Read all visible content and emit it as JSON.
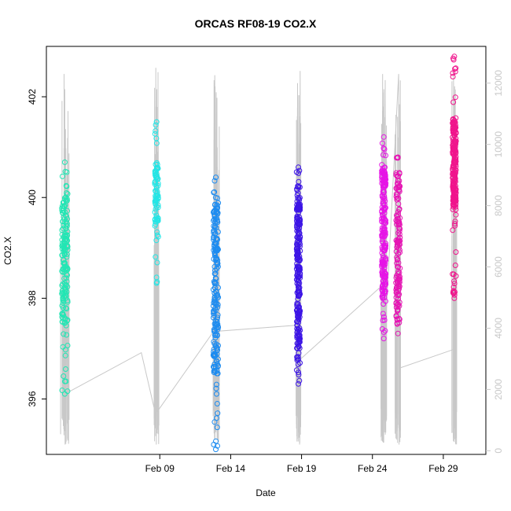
{
  "chart_data": {
    "type": "scatter",
    "title": "ORCAS RF08-19 CO2.X",
    "xlabel": "Date",
    "ylabel": "CO2.X",
    "xlim": [
      "2016-02-01",
      "2016-03-03"
    ],
    "ylim": [
      394.9,
      403.0
    ],
    "y2lim": [
      -120,
      13200
    ],
    "x_ticks": [
      {
        "label": "Feb 09",
        "date": "2016-02-09"
      },
      {
        "label": "Feb 14",
        "date": "2016-02-14"
      },
      {
        "label": "Feb 19",
        "date": "2016-02-19"
      },
      {
        "label": "Feb 24",
        "date": "2016-02-24"
      },
      {
        "label": "Feb 29",
        "date": "2016-02-29"
      }
    ],
    "y_ticks": [
      396,
      398,
      400,
      402
    ],
    "y2_ticks": [
      0,
      2000,
      4000,
      6000,
      8000,
      10000,
      12000
    ],
    "colors": {
      "flights": [
        "#22e6b4",
        "#22e6e6",
        "#1e8cf0",
        "#3c14e6",
        "#e614e6",
        "#e614b4",
        "#f0148c"
      ],
      "altitude_line": "#c8c8c8",
      "axes": "#000000"
    },
    "altitude_series": {
      "description_units": "altitude",
      "points": [
        [
          "2016-02-02.25",
          12300
        ],
        [
          "2016-02-02.27",
          1400
        ],
        [
          "2016-02-02.30",
          11800
        ],
        [
          "2016-02-02.32",
          200
        ],
        [
          "2016-02-02.35",
          10500
        ],
        [
          "2016-02-02.40",
          300
        ],
        [
          "2016-02-02.45",
          9000
        ],
        [
          "2016-02-02.50",
          1900
        ],
        [
          "2016-02-07.70",
          3200
        ],
        [
          "2016-02-08.70",
          1200
        ],
        [
          "2016-02-08.72",
          12500
        ],
        [
          "2016-02-08.75",
          200
        ],
        [
          "2016-02-08.78",
          11800
        ],
        [
          "2016-02-08.82",
          800
        ],
        [
          "2016-02-08.86",
          1300
        ],
        [
          "2016-02-12.80",
          3900
        ],
        [
          "2016-02-12.83",
          12100
        ],
        [
          "2016-02-12.86",
          400
        ],
        [
          "2016-02-12.90",
          11900
        ],
        [
          "2016-02-12.94",
          600
        ],
        [
          "2016-02-12.98",
          11700
        ],
        [
          "2016-02-13.02",
          1500
        ],
        [
          "2016-02-13.06",
          3900
        ],
        [
          "2016-02-18.70",
          4100
        ],
        [
          "2016-02-18.72",
          12000
        ],
        [
          "2016-02-18.76",
          300
        ],
        [
          "2016-02-18.80",
          11600
        ],
        [
          "2016-02-18.86",
          200
        ],
        [
          "2016-02-18.90",
          12400
        ],
        [
          "2016-02-18.95",
          3000
        ],
        [
          "2016-02-24.70",
          5400
        ],
        [
          "2016-02-24.72",
          12300
        ],
        [
          "2016-02-24.76",
          300
        ],
        [
          "2016-02-24.80",
          11800
        ],
        [
          "2016-02-24.86",
          600
        ],
        [
          "2016-02-24.90",
          12100
        ],
        [
          "2016-02-24.95",
          4300
        ],
        [
          "2016-02-25.85",
          12300
        ],
        [
          "2016-02-25.88",
          200
        ],
        [
          "2016-02-25.92",
          2700
        ],
        [
          "2016-02-29.70",
          3300
        ],
        [
          "2016-02-29.72",
          12500
        ],
        [
          "2016-02-29.76",
          300
        ],
        [
          "2016-02-29.80",
          11900
        ],
        [
          "2016-02-29.84",
          1200
        ]
      ]
    },
    "series": [
      {
        "start": "2016-02-02.00",
        "end": "2016-02-02.60",
        "ymin": 396.1,
        "ymax": 400.7,
        "n": 170,
        "dense": [
          397.5,
          400.1
        ]
      },
      {
        "start": "2016-02-08.60",
        "end": "2016-02-08.95",
        "ymin": 398.3,
        "ymax": 401.5,
        "n": 80,
        "dense": [
          399.5,
          400.7
        ]
      },
      {
        "start": "2016-02-12.70",
        "end": "2016-02-13.20",
        "ymin": 395.0,
        "ymax": 400.4,
        "n": 210,
        "dense": [
          396.5,
          399.9
        ]
      },
      {
        "start": "2016-02-18.60",
        "end": "2016-02-18.95",
        "ymin": 396.3,
        "ymax": 400.6,
        "n": 240,
        "dense": [
          397.0,
          399.9
        ]
      },
      {
        "start": "2016-02-24.60",
        "end": "2016-02-25.00",
        "ymin": 397.2,
        "ymax": 401.2,
        "n": 200,
        "dense": [
          398.0,
          400.6
        ]
      },
      {
        "start": "2016-02-25.60",
        "end": "2016-02-26.00",
        "ymin": 397.3,
        "ymax": 400.8,
        "n": 140,
        "dense": [
          397.5,
          400.5
        ]
      },
      {
        "start": "2016-02-29.60",
        "end": "2016-02-29.95",
        "ymin": 398.0,
        "ymax": 402.8,
        "n": 210,
        "dense": [
          399.8,
          401.6
        ]
      }
    ],
    "grid": false,
    "legend": "none"
  }
}
